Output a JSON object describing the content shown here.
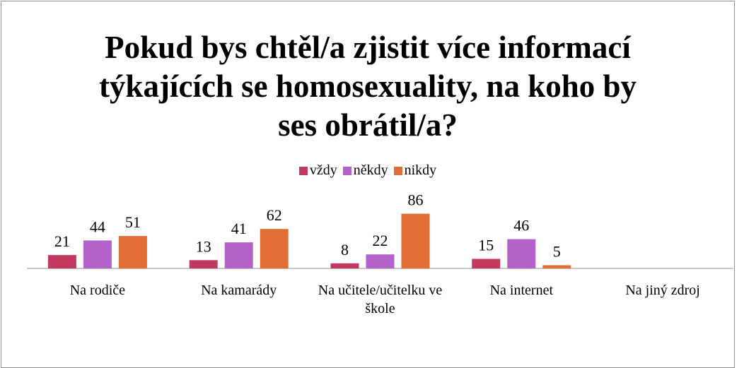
{
  "chart_data": {
    "type": "bar",
    "title": "Pokud bys chtěl/a zjistit více informací týkajících se homosexuality, na koho by ses obrátil/a?",
    "categories": [
      "Na rodiče",
      "Na kamarády",
      "Na učitele/učitelku ve škole",
      "Na internet",
      "Na jiný zdroj"
    ],
    "series": [
      {
        "name": "vždy",
        "color": "#c2395f",
        "values": [
          21,
          13,
          8,
          15,
          null
        ]
      },
      {
        "name": "někdy",
        "color": "#b262c8",
        "values": [
          44,
          41,
          22,
          46,
          null
        ]
      },
      {
        "name": "nikdy",
        "color": "#e06d36",
        "values": [
          51,
          62,
          86,
          5,
          null
        ]
      }
    ],
    "legend": "top"
  }
}
